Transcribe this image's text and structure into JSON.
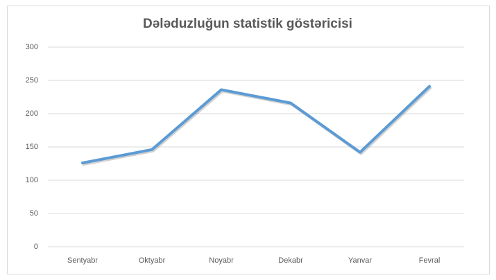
{
  "chart_data": {
    "type": "line",
    "title": "Dələduzluğun statistik göstəricisi",
    "categories": [
      "Sentyabr",
      "Oktyabr",
      "Noyabr",
      "Dekabr",
      "Yanvar",
      "Fevral"
    ],
    "values": [
      126,
      146,
      236,
      216,
      142,
      241
    ],
    "color": "#5b9bd5",
    "ylim": [
      0,
      300
    ],
    "yticks": [
      0,
      50,
      100,
      150,
      200,
      250,
      300
    ],
    "grid": true
  }
}
